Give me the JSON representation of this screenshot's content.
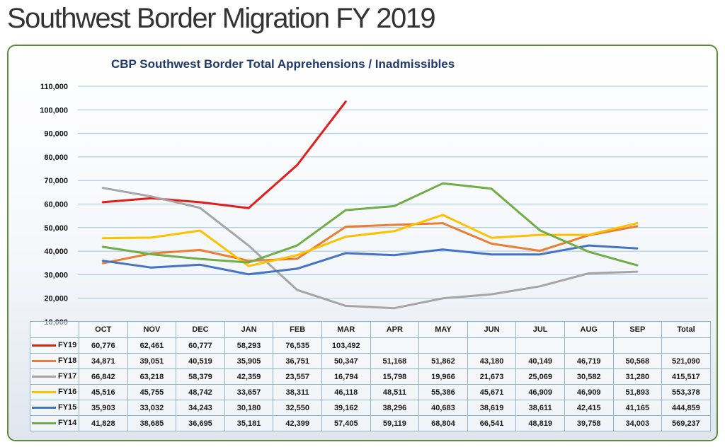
{
  "page": {
    "title": "Southwest Border Migration FY 2019"
  },
  "chart_data": {
    "type": "line",
    "title": "CBP Southwest Border Total Apprehensions / Inadmissibles",
    "xlabel": "",
    "ylabel": "",
    "categories": [
      "OCT",
      "NOV",
      "DEC",
      "JAN",
      "FEB",
      "MAR",
      "APR",
      "MAY",
      "JUN",
      "JUL",
      "AUG",
      "SEP"
    ],
    "total_label": "Total",
    "ylim": [
      10000,
      110000
    ],
    "y_ticks": [
      "10,000",
      "20,000",
      "30,000",
      "40,000",
      "50,000",
      "60,000",
      "70,000",
      "80,000",
      "90,000",
      "100,000",
      "110,000"
    ],
    "y_tick_values": [
      10000,
      20000,
      30000,
      40000,
      50000,
      60000,
      70000,
      80000,
      90000,
      100000,
      110000
    ],
    "grid": true,
    "legend": "data-table-left",
    "series": [
      {
        "name": "FY19",
        "color": "#e31c1c",
        "values": [
          60776,
          62461,
          60777,
          58293,
          76535,
          103492,
          null,
          null,
          null,
          null,
          null,
          null
        ],
        "labels": [
          "60,776",
          "62,461",
          "60,777",
          "58,293",
          "76,535",
          "103,492",
          "",
          "",
          "",
          "",
          "",
          ""
        ],
        "total": ""
      },
      {
        "name": "FY18",
        "color": "#ed7d31",
        "values": [
          34871,
          39051,
          40519,
          35905,
          36751,
          50347,
          51168,
          51862,
          43180,
          40149,
          46719,
          50568
        ],
        "labels": [
          "34,871",
          "39,051",
          "40,519",
          "35,905",
          "36,751",
          "50,347",
          "51,168",
          "51,862",
          "43,180",
          "40,149",
          "46,719",
          "50,568"
        ],
        "total": "521,090"
      },
      {
        "name": "FY17",
        "color": "#a5a5a5",
        "values": [
          66842,
          63218,
          58379,
          42359,
          23557,
          16794,
          15798,
          19966,
          21673,
          25069,
          30582,
          31280
        ],
        "labels": [
          "66,842",
          "63,218",
          "58,379",
          "42,359",
          "23,557",
          "16,794",
          "15,798",
          "19,966",
          "21,673",
          "25,069",
          "30,582",
          "31,280"
        ],
        "total": "415,517"
      },
      {
        "name": "FY16",
        "color": "#ffc000",
        "values": [
          45516,
          45755,
          48742,
          33657,
          38311,
          46118,
          48511,
          55386,
          45671,
          46909,
          46909,
          51893
        ],
        "labels": [
          "45,516",
          "45,755",
          "48,742",
          "33,657",
          "38,311",
          "46,118",
          "48,511",
          "55,386",
          "45,671",
          "46,909",
          "46,909",
          "51,893"
        ],
        "total": "553,378"
      },
      {
        "name": "FY15",
        "color": "#4472c4",
        "values": [
          35903,
          33032,
          34243,
          30180,
          32550,
          39162,
          38296,
          40683,
          38619,
          38611,
          42415,
          41165
        ],
        "labels": [
          "35,903",
          "33,032",
          "34,243",
          "30,180",
          "32,550",
          "39,162",
          "38,296",
          "40,683",
          "38,619",
          "38,611",
          "42,415",
          "41,165"
        ],
        "total": "444,859"
      },
      {
        "name": "FY14",
        "color": "#70ad47",
        "values": [
          41828,
          38685,
          36695,
          35181,
          42399,
          57405,
          59119,
          68804,
          66541,
          48819,
          39758,
          34003
        ],
        "labels": [
          "41,828",
          "38,685",
          "36,695",
          "35,181",
          "42,399",
          "57,405",
          "59,119",
          "68,804",
          "66,541",
          "48,819",
          "39,758",
          "34,003"
        ],
        "total": "569,237"
      }
    ]
  }
}
